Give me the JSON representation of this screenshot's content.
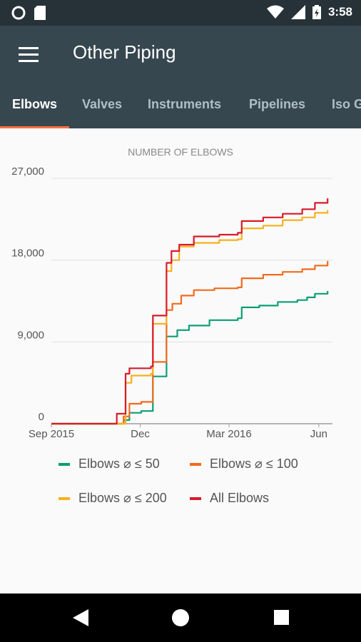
{
  "status_bar": {
    "time": "3:58",
    "icons": [
      "notification-circle-icon",
      "sd-card-icon",
      "wifi-icon",
      "signal-icon",
      "battery-icon"
    ]
  },
  "app_bar": {
    "title": "Other Piping",
    "menu_icon": "hamburger-menu-icon"
  },
  "tabs": [
    {
      "label": "Elbows",
      "active": true
    },
    {
      "label": "Valves",
      "active": false
    },
    {
      "label": "Instruments",
      "active": false
    },
    {
      "label": "Pipelines",
      "active": false
    },
    {
      "label": "Iso G",
      "active": false
    }
  ],
  "colors": {
    "app_bar": "#37474f",
    "status_bar": "#263238",
    "accent": "#ff7043",
    "grid": "#e0e0e0",
    "axis_text": "#555555"
  },
  "chart_data": {
    "type": "line",
    "title": "NUMBER OF ELBOWS",
    "xlabel": "",
    "ylabel": "",
    "x_ticks": [
      "Sep 2015",
      "Dec",
      "Mar 2016",
      "Jun"
    ],
    "y_ticks": [
      "0",
      "9,000",
      "18,000",
      "27,000"
    ],
    "ylim": [
      0,
      27000
    ],
    "grid": true,
    "legend_position": "bottom",
    "series": [
      {
        "name": "Elbows ⌀ ≤ 50",
        "color": "#0b9e74",
        "points": [
          [
            "2015-09-01",
            0
          ],
          [
            "2015-11-12",
            0
          ],
          [
            "2015-11-14",
            400
          ],
          [
            "2015-11-20",
            1200
          ],
          [
            "2015-12-02",
            1400
          ],
          [
            "2015-12-12",
            1400
          ],
          [
            "2015-12-14",
            5200
          ],
          [
            "2015-12-26",
            5200
          ],
          [
            "2015-12-28",
            9600
          ],
          [
            "2016-01-08",
            10300
          ],
          [
            "2016-01-20",
            10800
          ],
          [
            "2016-02-10",
            11400
          ],
          [
            "2016-03-10",
            11600
          ],
          [
            "2016-03-14",
            12800
          ],
          [
            "2016-04-01",
            13000
          ],
          [
            "2016-04-20",
            13400
          ],
          [
            "2016-05-10",
            13600
          ],
          [
            "2016-05-20",
            13900
          ],
          [
            "2016-05-28",
            14300
          ],
          [
            "2016-06-10",
            14600
          ]
        ]
      },
      {
        "name": "Elbows ⌀ ≤ 100",
        "color": "#f26b1d",
        "points": [
          [
            "2015-09-01",
            0
          ],
          [
            "2015-11-12",
            0
          ],
          [
            "2015-11-14",
            800
          ],
          [
            "2015-11-20",
            2200
          ],
          [
            "2015-12-02",
            2400
          ],
          [
            "2015-12-12",
            2400
          ],
          [
            "2015-12-14",
            6800
          ],
          [
            "2015-12-26",
            6800
          ],
          [
            "2015-12-28",
            12500
          ],
          [
            "2016-01-03",
            13200
          ],
          [
            "2016-01-12",
            14100
          ],
          [
            "2016-01-25",
            14700
          ],
          [
            "2016-02-15",
            14900
          ],
          [
            "2016-03-10",
            15000
          ],
          [
            "2016-03-14",
            16000
          ],
          [
            "2016-04-05",
            16400
          ],
          [
            "2016-04-25",
            16700
          ],
          [
            "2016-05-15",
            17000
          ],
          [
            "2016-05-28",
            17400
          ],
          [
            "2016-06-10",
            17900
          ]
        ]
      },
      {
        "name": "Elbows ⌀ ≤ 200",
        "color": "#f5b120",
        "points": [
          [
            "2015-09-01",
            0
          ],
          [
            "2015-11-12",
            0
          ],
          [
            "2015-11-16",
            4500
          ],
          [
            "2015-11-22",
            5300
          ],
          [
            "2015-12-12",
            5500
          ],
          [
            "2015-12-14",
            11000
          ],
          [
            "2015-12-26",
            11000
          ],
          [
            "2015-12-28",
            16800
          ],
          [
            "2016-01-02",
            18000
          ],
          [
            "2016-01-10",
            19500
          ],
          [
            "2016-01-25",
            19900
          ],
          [
            "2016-02-20",
            20200
          ],
          [
            "2016-03-10",
            20300
          ],
          [
            "2016-03-14",
            21500
          ],
          [
            "2016-04-05",
            21800
          ],
          [
            "2016-04-25",
            22400
          ],
          [
            "2016-05-15",
            22700
          ],
          [
            "2016-05-28",
            23200
          ],
          [
            "2016-06-10",
            23500
          ]
        ]
      },
      {
        "name": "All Elbows",
        "color": "#d81b2a",
        "points": [
          [
            "2015-09-01",
            0
          ],
          [
            "2015-11-05",
            0
          ],
          [
            "2015-11-07",
            1100
          ],
          [
            "2015-11-16",
            5500
          ],
          [
            "2015-11-20",
            6100
          ],
          [
            "2015-12-12",
            6300
          ],
          [
            "2015-12-14",
            11900
          ],
          [
            "2015-12-26",
            11900
          ],
          [
            "2015-12-28",
            17700
          ],
          [
            "2016-01-02",
            19000
          ],
          [
            "2016-01-10",
            19700
          ],
          [
            "2016-01-25",
            20600
          ],
          [
            "2016-02-20",
            20800
          ],
          [
            "2016-03-10",
            21000
          ],
          [
            "2016-03-14",
            22300
          ],
          [
            "2016-04-05",
            22700
          ],
          [
            "2016-04-25",
            23100
          ],
          [
            "2016-05-15",
            23600
          ],
          [
            "2016-05-28",
            24300
          ],
          [
            "2016-06-10",
            24800
          ]
        ]
      }
    ]
  },
  "nav_bar": {
    "icons": [
      "back-triangle-icon",
      "home-circle-icon",
      "recents-square-icon"
    ]
  }
}
